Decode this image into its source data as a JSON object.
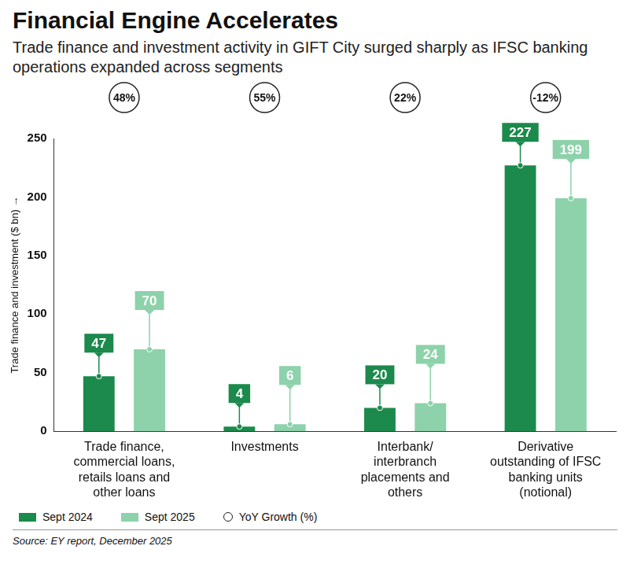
{
  "chart_data": {
    "type": "bar",
    "title": "Financial Engine Accelerates",
    "subtitle": "Trade finance and investment activity in GIFT City surged sharply as IFSC banking operations expanded across segments",
    "y_label": "Trade finance and investment ($ bn) →",
    "categories": [
      "Trade finance, commercial loans, retails loans and other loans",
      "Investments",
      "Interbank/ interbranch placements and others",
      "Derivative outstanding of IFSC banking units (notional)"
    ],
    "series": [
      {
        "name": "Sept 2024",
        "color": "#1b8a4c",
        "values": [
          47,
          4,
          20,
          227
        ]
      },
      {
        "name": "Sept 2025",
        "color": "#8dd2aa",
        "values": [
          70,
          6,
          24,
          199
        ]
      }
    ],
    "yoy_growth": {
      "name": "YoY Growth (%)",
      "values": [
        48,
        55,
        22,
        -12
      ],
      "value_labels": [
        "48%",
        "55%",
        "22%",
        "-12%"
      ]
    },
    "ylim": [
      0,
      250
    ],
    "yticks": [
      0,
      50,
      100,
      150,
      200,
      250
    ],
    "grid": false,
    "legend": "bottom",
    "data_labels": true,
    "source": "Source: EY report, December 2025"
  }
}
